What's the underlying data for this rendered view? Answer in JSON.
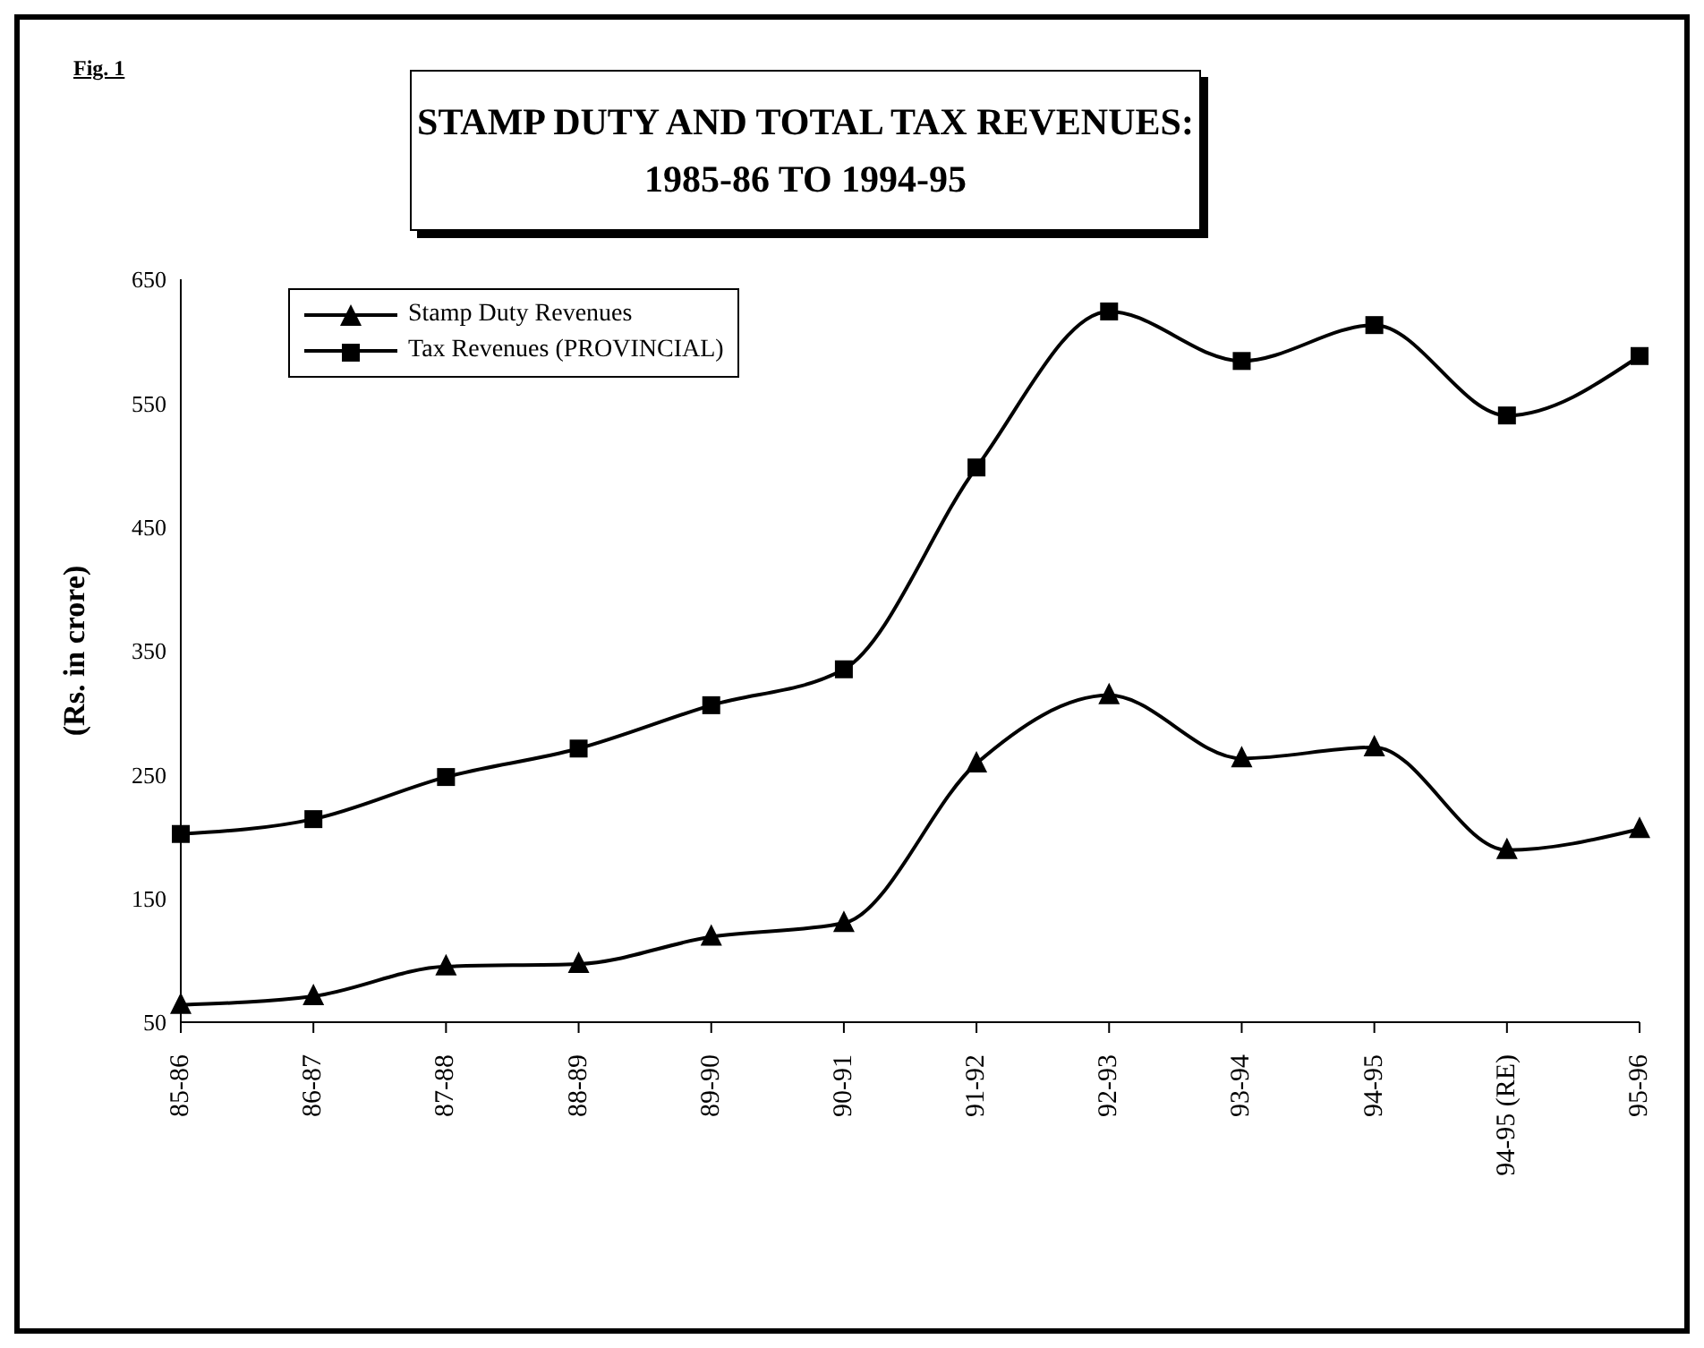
{
  "chart_data": {
    "type": "line",
    "title": "STAMP DUTY AND TOTAL TAX REVENUES:\n1985-86 TO 1994-95",
    "ylabel": "(Rs. in crore)",
    "annotations": [
      "Fig. 1"
    ],
    "categories": [
      "85-86",
      "86-87",
      "87-88",
      "88-89",
      "89-90",
      "90-91",
      "91-92",
      "92-93",
      "93-94",
      "94-95",
      "94-95 (RE)",
      "95-96"
    ],
    "series": [
      {
        "name": "Stamp Duty Revenues",
        "color": "#000000",
        "marker": "triangle",
        "values": [
          64,
          71,
          95,
          97,
          119,
          130,
          259,
          314,
          263,
          272,
          189,
          206
        ]
      },
      {
        "name": "Tax Revenues (PROVINCIAL)",
        "color": "#000000",
        "marker": "square",
        "values": [
          202,
          214,
          248,
          271,
          306,
          335,
          498,
          624,
          584,
          613,
          540,
          588
        ]
      }
    ],
    "ylim": [
      50,
      650
    ],
    "yticks": [
      50,
      150,
      250,
      350,
      450,
      550,
      650
    ],
    "grid": false,
    "legend": "top left",
    "line_style": "solid"
  }
}
